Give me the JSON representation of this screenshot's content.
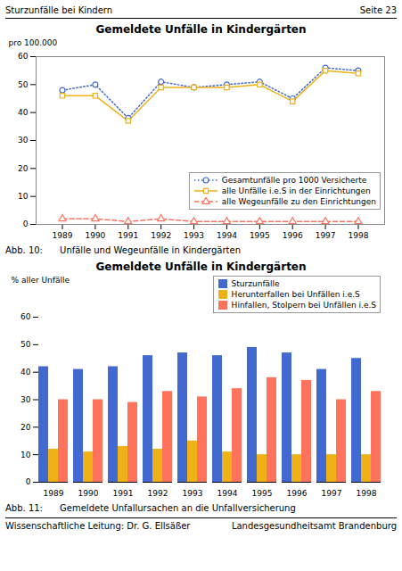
{
  "chart_data": [
    {
      "type": "line",
      "title": "Gemeldete Unfälle in Kindergärten",
      "y_label": "pro 100.000",
      "x": [
        1989,
        1990,
        1991,
        1992,
        1993,
        1994,
        1995,
        1996,
        1997,
        1998
      ],
      "xlim": [
        1988.2,
        1998.8
      ],
      "xticks": [
        1989,
        1990,
        1991,
        1992,
        1993,
        1994,
        1995,
        1996,
        1997,
        1998
      ],
      "ylim": [
        0,
        60
      ],
      "yticks": [
        0,
        10,
        20,
        30,
        40,
        50,
        60
      ],
      "series": [
        {
          "name": "Gesamtunfälle pro 1000 Versicherte",
          "values": [
            48,
            50,
            38,
            51,
            49,
            50,
            51,
            45,
            56,
            55
          ],
          "marker": "circle",
          "line_style": "dotted"
        },
        {
          "name": "alle Unfälle i.e.S in der Einrichtungen",
          "values": [
            46,
            46,
            37,
            49,
            49,
            49,
            50,
            44,
            55,
            54
          ],
          "marker": "square",
          "line_style": "solid"
        },
        {
          "name": "alle Wegeunfälle zu den Einrichtungen",
          "values": [
            2,
            2,
            1,
            2,
            1,
            1,
            1,
            1,
            1,
            1
          ],
          "marker": "triangle",
          "line_style": "dashed"
        }
      ],
      "legend": "lower right",
      "grid": false,
      "caption": "Abb. 10:      Unfälle und Wegeunfälle in Kindergärten",
      "annotations": [
        "Sturzunfälle bei Kindern",
        "Seite 23"
      ]
    },
    {
      "type": "bar",
      "title": "Gemeldete Unfälle in Kindergärten",
      "y_label": "% aller Unfälle",
      "categories": [
        "1989",
        "1990",
        "1991",
        "1992",
        "1993",
        "1994",
        "1995",
        "1996",
        "1997",
        "1998"
      ],
      "ylim": [
        0,
        60
      ],
      "yticks": [
        0,
        10,
        20,
        30,
        40,
        50,
        60
      ],
      "series": [
        {
          "name": "Sturzunfälle",
          "values": [
            42,
            41,
            42,
            46,
            47,
            46,
            49,
            47,
            41,
            45
          ]
        },
        {
          "name": "Herunterfallen bei Unfällen i.e.S",
          "values": [
            12,
            11,
            13,
            12,
            15,
            11,
            10,
            10,
            10,
            10
          ]
        },
        {
          "name": "Hinfallen, Stolpern bei Unfällen i.e.S",
          "values": [
            30,
            30,
            29,
            33,
            31,
            34,
            38,
            37,
            30,
            33
          ]
        }
      ],
      "legend": "upper right",
      "grid": false,
      "caption": "Abb. 11:      Gemeldete Unfallursachen an die Unfallversicherung",
      "annotations": [
        "Wissenschaftliche Leitung: Dr. G. Ellsäßer",
        "Landesgesundheitsamt Brandenburg"
      ]
    }
  ]
}
